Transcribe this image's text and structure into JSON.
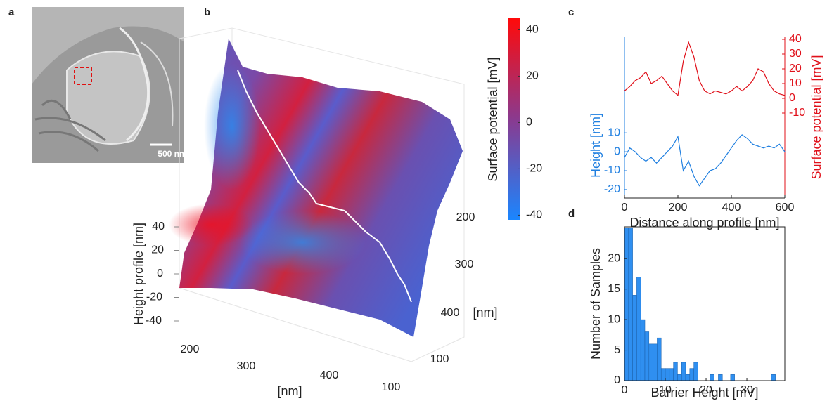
{
  "panel_labels": [
    "a",
    "b",
    "c",
    "d"
  ],
  "image_panel": {
    "scale_bar_label": "500 nm"
  },
  "chart_data": [
    {
      "type": "surface3d",
      "zlabel": "Height profile [nm]",
      "xlabel": "[nm]",
      "ylabel": "[nm]",
      "zticks": [
        40,
        20,
        0,
        -20,
        -40
      ],
      "xticks": [
        200,
        300,
        400,
        100
      ],
      "yticks": [
        200,
        300,
        400,
        100
      ],
      "colorbar": {
        "label": "Surface potential [mV]",
        "lim": [
          -42,
          45
        ],
        "ticks": [
          40,
          20,
          0,
          -20,
          -40
        ],
        "colors": [
          "#1a86ff",
          "#8a3a8f",
          "#ff0a0a"
        ]
      }
    },
    {
      "type": "line",
      "xlabel": "Distance along profile [nm]",
      "x": [
        0,
        20,
        40,
        60,
        80,
        100,
        120,
        140,
        160,
        180,
        200,
        220,
        240,
        260,
        280,
        300,
        320,
        340,
        360,
        380,
        400,
        420,
        440,
        460,
        480,
        500,
        520,
        540,
        560,
        580,
        600
      ],
      "xlim": [
        0,
        600
      ],
      "xticks": [
        0,
        200,
        400,
        600
      ],
      "ylim": [
        -24.5,
        61
      ],
      "yticks": [
        -20,
        -10,
        0,
        10
      ],
      "y2lim": [
        -67.6,
        41.9
      ],
      "y2ticks": [
        -10,
        0,
        10,
        20,
        30,
        40
      ],
      "series": [
        {
          "name": "Height [nm]",
          "color": "#1f7fe0",
          "values": [
            -3,
            2,
            0,
            -3,
            -5,
            -3,
            -6,
            -3,
            0,
            3,
            8,
            -10,
            -5,
            -13,
            -18,
            -14,
            -10,
            -9,
            -6,
            -2,
            2,
            6,
            9,
            7,
            4,
            3,
            2,
            3,
            2,
            4,
            0
          ]
        },
        {
          "name": "Surface potential [mV]",
          "color": "#e0101a",
          "axis": "y2",
          "values": [
            5,
            8,
            12,
            14,
            18,
            10,
            12,
            15,
            10,
            5,
            2,
            25,
            38,
            28,
            12,
            5,
            3,
            5,
            4,
            3,
            5,
            8,
            5,
            8,
            12,
            20,
            18,
            10,
            5,
            3,
            2
          ]
        }
      ]
    },
    {
      "type": "histogram",
      "xlabel": "Barrier Height [mV]",
      "ylabel": "Number of Samples",
      "color": "#2f8ff0",
      "bins": [
        0,
        1,
        2,
        3,
        4,
        5,
        6,
        7,
        8,
        9,
        10,
        11,
        12,
        13,
        14,
        15,
        16,
        17,
        18,
        19,
        20,
        21,
        22,
        23,
        24,
        25,
        26,
        27,
        28,
        29,
        30,
        31,
        32,
        33,
        34,
        35,
        36,
        37,
        38,
        39
      ],
      "values": [
        25,
        25,
        14,
        17,
        10,
        8,
        6,
        6,
        7,
        2,
        2,
        2,
        3,
        1,
        3,
        1,
        2,
        3,
        0,
        0,
        0,
        1,
        0,
        1,
        0,
        0,
        1,
        0,
        0,
        0,
        0,
        0,
        0,
        0,
        0,
        0,
        1,
        0,
        0
      ],
      "xlim": [
        0,
        39.3
      ],
      "xticks": [
        0,
        10,
        20,
        30
      ],
      "ylim": [
        0,
        25.2
      ],
      "yticks": [
        0,
        5,
        10,
        15,
        20
      ]
    }
  ]
}
